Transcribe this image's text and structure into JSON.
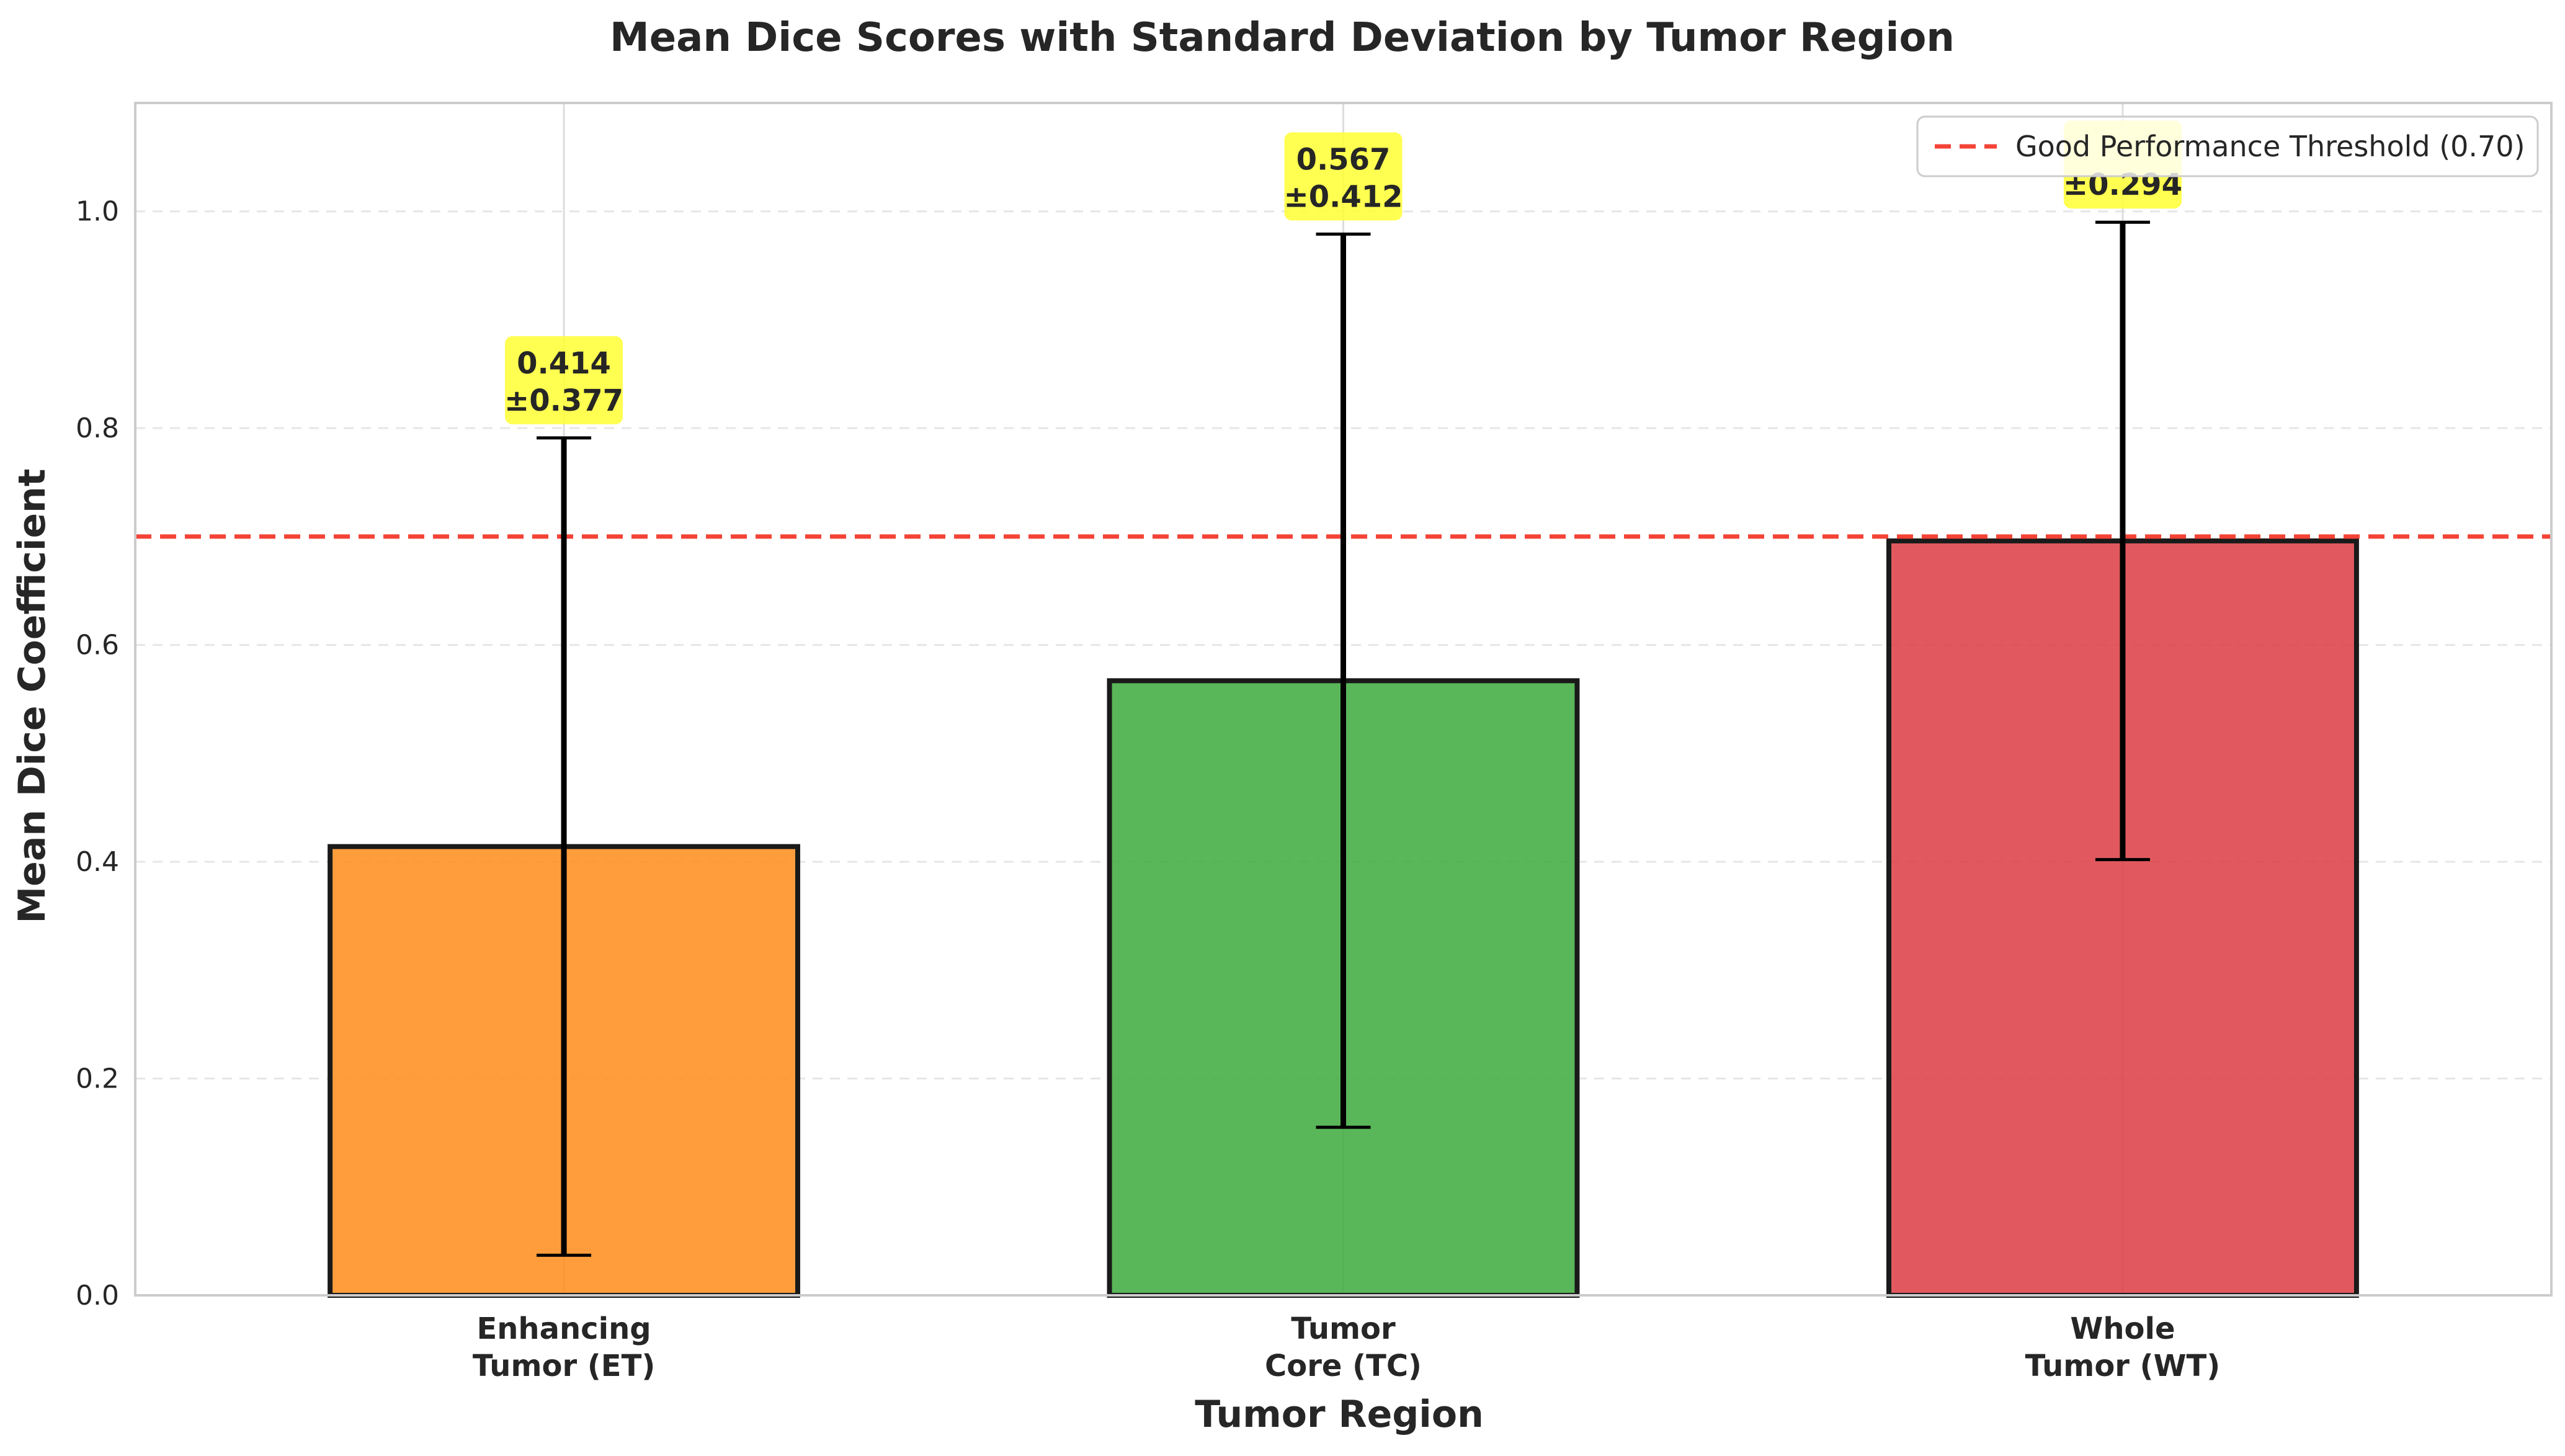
{
  "chart_data": {
    "type": "bar",
    "title": "Mean Dice Scores with Standard Deviation by Tumor Region",
    "xlabel": "Tumor Region",
    "ylabel": "Mean Dice Coefficient",
    "ylim": [
      0,
      1.1
    ],
    "yticks": [
      "0.0",
      "0.2",
      "0.4",
      "0.6",
      "0.8",
      "1.0"
    ],
    "ytick_values": [
      0.0,
      0.2,
      0.4,
      0.6,
      0.8,
      1.0
    ],
    "categories": [
      [
        "Enhancing",
        "Tumor (ET)"
      ],
      [
        "Tumor",
        "Core (TC)"
      ],
      [
        "Whole",
        "Tumor (WT)"
      ]
    ],
    "values": [
      0.414,
      0.567,
      0.696
    ],
    "errors": [
      0.377,
      0.412,
      0.294
    ],
    "value_labels": [
      [
        "0.414",
        "±0.377"
      ],
      [
        "0.567",
        "±0.412"
      ],
      [
        "",
        "±0.294"
      ]
    ],
    "bar_colors": [
      "#ff8c1a",
      "#3caa3c",
      "#dc3c42"
    ],
    "label_box_color": "#ffff33",
    "threshold": {
      "value": 0.7,
      "label": "Good Performance Threshold (0.70)",
      "color": "#f44336"
    },
    "grid": true,
    "legend_position": "top-right"
  }
}
